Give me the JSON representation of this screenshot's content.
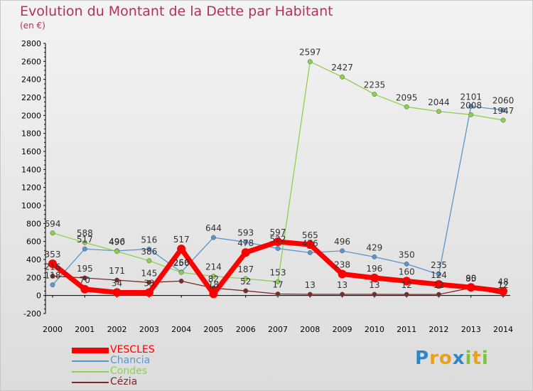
{
  "header": {
    "title": "Evolution du Montant de la Dette par Habitant",
    "unit": "(en €)"
  },
  "brand": {
    "letters": [
      {
        "char": "P",
        "color": "#2e86c8"
      },
      {
        "char": "r",
        "color": "#e8a11c"
      },
      {
        "char": "o",
        "color": "#e8a11c"
      },
      {
        "char": "x",
        "color": "#2e86c8"
      },
      {
        "char": "i",
        "color": "#7cc242"
      },
      {
        "char": "t",
        "color": "#e8a11c"
      },
      {
        "char": "i",
        "color": "#7cc242"
      }
    ]
  },
  "chart_data": {
    "type": "line",
    "title": "Evolution du Montant de la Dette par Habitant",
    "ylabel": "(en €)",
    "x": [
      "2000",
      "2001",
      "2002",
      "2003",
      "2004",
      "2005",
      "2006",
      "2007",
      "2008",
      "2009",
      "2010",
      "2011",
      "2012",
      "2013",
      "2014"
    ],
    "ylim": [
      -200,
      2800
    ],
    "yticks": [
      "-200",
      "0",
      "200",
      "400",
      "600",
      "800",
      "1000",
      "1200",
      "1400",
      "1600",
      "1800",
      "2000",
      "2200",
      "2400",
      "2600",
      "2800"
    ],
    "grid": false,
    "legend_position": "bottom-left",
    "series": [
      {
        "name": "VESCLES",
        "color": "#ff0000",
        "values": [
          353,
          70,
          34,
          33,
          517,
          18,
          478,
          597,
          565,
          238,
          196,
          160,
          124,
          90,
          48
        ],
        "labels": [
          "353",
          "70",
          "34",
          "33",
          "517",
          "18",
          "478",
          "597",
          "565",
          "238",
          "196",
          "160",
          "124",
          "90",
          "48"
        ]
      },
      {
        "name": "Chancia",
        "color": "#5b95cc",
        "values": [
          118,
          517,
          496,
          516,
          260,
          644,
          593,
          522,
          476,
          496,
          429,
          350,
          235,
          2101,
          2060
        ],
        "labels": [
          "118",
          "517",
          "496",
          "516",
          "260",
          "644",
          "593",
          "522",
          "476",
          "496",
          "429",
          "350",
          "235",
          "2101",
          "2060"
        ]
      },
      {
        "name": "Condes",
        "color": "#8ed04e",
        "values": [
          694,
          588,
          490,
          386,
          256,
          214,
          187,
          153,
          2597,
          2427,
          2235,
          2095,
          2044,
          2008,
          1947
        ],
        "labels": [
          "694",
          "588",
          "490",
          "386",
          "256",
          "214",
          "187",
          "153",
          "2597",
          "2427",
          "2235",
          "2095",
          "2044",
          "2008",
          "1947"
        ]
      },
      {
        "name": "Cézia",
        "color": "#7a2a2a",
        "values": [
          216,
          195,
          171,
          145,
          160,
          82,
          52,
          17,
          13,
          13,
          13,
          12,
          12,
          85,
          12
        ],
        "labels": [
          "216",
          "195",
          "171",
          "145",
          "",
          "82",
          "52",
          "17",
          "13",
          "13",
          "13",
          "12",
          "12",
          "85",
          "12"
        ]
      }
    ]
  }
}
